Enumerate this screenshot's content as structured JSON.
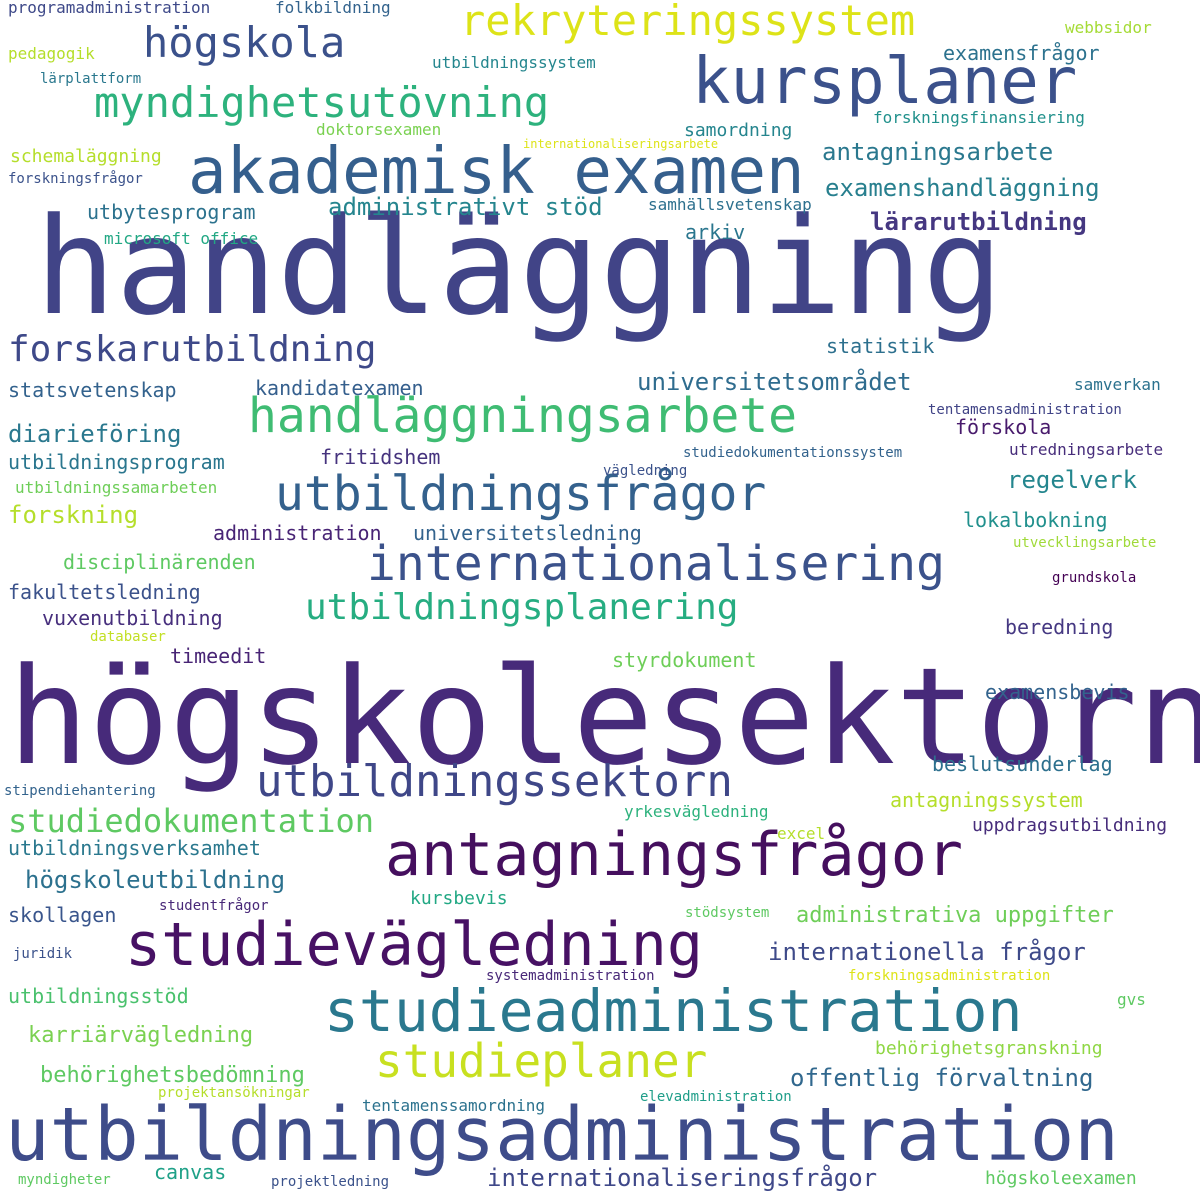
{
  "words": [
    {
      "text": "högskolesektorn",
      "color": "#472a7a"
    },
    {
      "text": "handläggning",
      "color": "#414487"
    },
    {
      "text": "utbildningsadministration",
      "color": "#3e4c8a"
    },
    {
      "text": "akademisk examen",
      "color": "#355f8d"
    },
    {
      "text": "kursplaner",
      "color": "#3b518b"
    },
    {
      "text": "antagningsfrågor",
      "color": "#450f5e"
    },
    {
      "text": "studievägledning",
      "color": "#471164"
    },
    {
      "text": "studieadministration",
      "color": "#2a788e"
    },
    {
      "text": "utbildningsfrågor",
      "color": "#34618d"
    },
    {
      "text": "handläggningsarbete",
      "color": "#3fbc73"
    },
    {
      "text": "internationalisering",
      "color": "#3b528b"
    },
    {
      "text": "utbildningssektorn",
      "color": "#3f4788"
    },
    {
      "text": "rekryteringssystem",
      "color": "#dde318"
    },
    {
      "text": "myndighetsutövning",
      "color": "#2db27d"
    },
    {
      "text": "högskola",
      "color": "#3b518b"
    },
    {
      "text": "forskarutbildning",
      "color": "#3e4989"
    },
    {
      "text": "utbildningsplanering",
      "color": "#26ad81"
    },
    {
      "text": "studiedokumentation",
      "color": "#5ec962"
    },
    {
      "text": "studieplaner",
      "color": "#c8e020"
    },
    {
      "text": "högskoleutbildning",
      "color": "#2c718e"
    },
    {
      "text": "universitetsområdet",
      "color": "#2f6c8e"
    },
    {
      "text": "internationella frågor",
      "color": "#3e4a89"
    },
    {
      "text": "offentlig förvaltning",
      "color": "#31688e"
    },
    {
      "text": "internationaliseringsfrågor",
      "color": "#3f4889"
    },
    {
      "text": "antagningsarbete",
      "color": "#2a788e"
    },
    {
      "text": "examenshandläggning",
      "color": "#277f8e"
    },
    {
      "text": "administrativt stöd",
      "color": "#25858e"
    },
    {
      "text": "utbytesprogram",
      "color": "#2c728e"
    },
    {
      "text": "lärarutbildning",
      "color": "#453781"
    },
    {
      "text": "examensfrågor",
      "color": "#2c728e"
    },
    {
      "text": "arkiv",
      "color": "#2a768e"
    },
    {
      "text": "statistik",
      "color": "#2d708e"
    },
    {
      "text": "kandidatexamen",
      "color": "#355f8d"
    },
    {
      "text": "statsvetenskap",
      "color": "#33628d"
    },
    {
      "text": "diarieföring",
      "color": "#2a788e"
    },
    {
      "text": "utbildningsprogram",
      "color": "#2a768e"
    },
    {
      "text": "fritidshem",
      "color": "#46337e"
    },
    {
      "text": "förskola",
      "color": "#481a6c"
    },
    {
      "text": "regelverk",
      "color": "#24868e"
    },
    {
      "text": "forskning",
      "color": "#b5de2b"
    },
    {
      "text": "utbildningssamarbeten",
      "color": "#6ece58"
    },
    {
      "text": "lokalbokning",
      "color": "#21908d"
    },
    {
      "text": "administration",
      "color": "#482475"
    },
    {
      "text": "universitetsledning",
      "color": "#33638d"
    },
    {
      "text": "disciplinärenden",
      "color": "#5ec962"
    },
    {
      "text": "fakultetsledning",
      "color": "#3b528b"
    },
    {
      "text": "vuxenutbildning",
      "color": "#472f7d"
    },
    {
      "text": "beredning",
      "color": "#453882"
    },
    {
      "text": "timeedit",
      "color": "#482475"
    },
    {
      "text": "styrdokument",
      "color": "#6ece58"
    },
    {
      "text": "examensbevis",
      "color": "#33638d"
    },
    {
      "text": "beslutsunderlag",
      "color": "#2d708e"
    },
    {
      "text": "antagningssystem",
      "color": "#b5de2b"
    },
    {
      "text": "uppdragsutbildning",
      "color": "#472d7b"
    },
    {
      "text": "utbildningsverksamhet",
      "color": "#2a788e"
    },
    {
      "text": "skollagen",
      "color": "#39558c"
    },
    {
      "text": "kursbevis",
      "color": "#22a884"
    },
    {
      "text": "administrativa uppgifter",
      "color": "#6ece58"
    },
    {
      "text": "utbildningsstöd",
      "color": "#4ac16d"
    },
    {
      "text": "karriärvägledning",
      "color": "#7ad151"
    },
    {
      "text": "behörighetsbedömning",
      "color": "#5ec962"
    },
    {
      "text": "behörighetsgranskning",
      "color": "#8fd744"
    },
    {
      "text": "canvas",
      "color": "#1fa188"
    },
    {
      "text": "tentamenssamordning",
      "color": "#2c728e"
    },
    {
      "text": "högskoleexamen",
      "color": "#5ec962"
    },
    {
      "text": "programadministration",
      "color": "#3e4989"
    },
    {
      "text": "folkbildning",
      "color": "#33638d"
    },
    {
      "text": "pedagogik",
      "color": "#b5de2b"
    },
    {
      "text": "webbsidor",
      "color": "#a5db36"
    },
    {
      "text": "lärplattform",
      "color": "#2a788e"
    },
    {
      "text": "utbildningssystem",
      "color": "#24868e"
    },
    {
      "text": "samordning",
      "color": "#25858e"
    },
    {
      "text": "forskningsfinansiering",
      "color": "#21918c"
    },
    {
      "text": "doktorsexamen",
      "color": "#7ad151"
    },
    {
      "text": "internationaliseringsarbete",
      "color": "#dde318"
    },
    {
      "text": "schemaläggning",
      "color": "#b5de2b"
    },
    {
      "text": "forskningsfrågor",
      "color": "#3b528b"
    },
    {
      "text": "samhällsvetenskap",
      "color": "#2d708e"
    },
    {
      "text": "microsoft office",
      "color": "#22a884"
    },
    {
      "text": "samverkan",
      "color": "#2c728e"
    },
    {
      "text": "tentamensadministration",
      "color": "#414487"
    },
    {
      "text": "studiedokumentationssystem",
      "color": "#33638d"
    },
    {
      "text": "utredningsarbete",
      "color": "#472d7b"
    },
    {
      "text": "vägledning",
      "color": "#3b528b"
    },
    {
      "text": "utvecklingsarbete",
      "color": "#a0da39"
    },
    {
      "text": "grundskola",
      "color": "#440154"
    },
    {
      "text": "databaser",
      "color": "#c2df23"
    },
    {
      "text": "stipendiehantering",
      "color": "#33638d"
    },
    {
      "text": "yrkesvägledning",
      "color": "#2db27d"
    },
    {
      "text": "excel",
      "color": "#b5de2b"
    },
    {
      "text": "studentfrågor",
      "color": "#482878"
    },
    {
      "text": "stödsystem",
      "color": "#5ec962"
    },
    {
      "text": "juridik",
      "color": "#3b528b"
    },
    {
      "text": "systemadministration",
      "color": "#482878"
    },
    {
      "text": "forskningsadministration",
      "color": "#dde318"
    },
    {
      "text": "gvs",
      "color": "#5ec962"
    },
    {
      "text": "projektansökningar",
      "color": "#b5de2b"
    },
    {
      "text": "elevadministration",
      "color": "#1f9e89"
    },
    {
      "text": "myndigheter",
      "color": "#5ec962"
    },
    {
      "text": "projektledning",
      "color": "#3b528b"
    }
  ]
}
